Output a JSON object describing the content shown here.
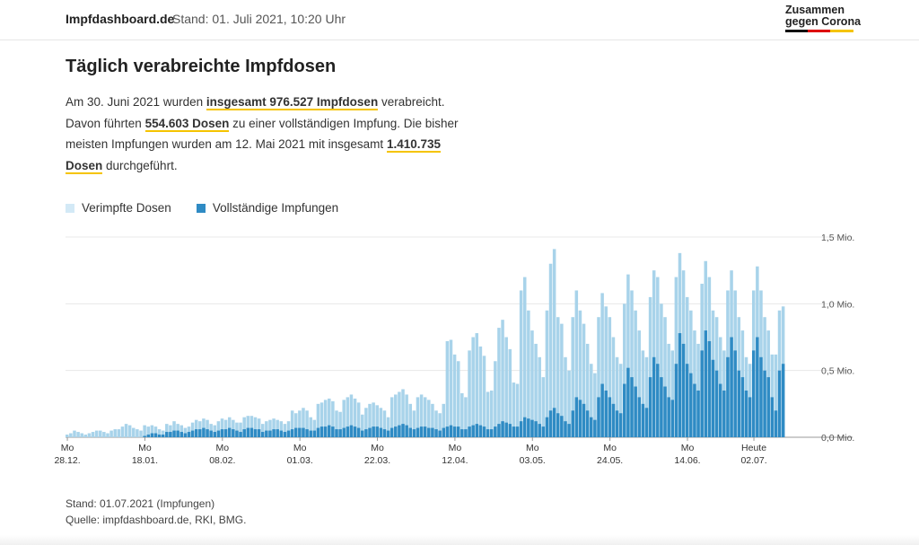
{
  "header": {
    "brand": "Impfdashboard.de",
    "stand": "Stand: 01. Juli 2021, 10:20 Uhr",
    "logo_line1": "Zusammen",
    "logo_line2": "gegen Corona"
  },
  "title": "Täglich verabreichte Impfdosen",
  "description": {
    "p1": "Am 30. Juni 2021 wurden ",
    "h1": "insgesamt 976.527 Impfdosen",
    "p2": " verabreicht.",
    "p3": "Davon führten ",
    "h2": "554.603 Dosen",
    "p4": " zu einer vollständigen Impfung. Die bisher meisten Impfungen wurden am 12. Mai 2021 mit insgesamt ",
    "h3": "1.410.735 Dosen",
    "p5": " durchgeführt."
  },
  "footer": {
    "stand": "Stand: 01.07.2021 (Impfungen)",
    "source": "Quelle: impfdashboard.de, RKI, BMG."
  },
  "chart_data": {
    "type": "bar",
    "stacked": "overlay",
    "title": "Täglich verabreichte Impfdosen",
    "ylim": [
      0,
      1.5
    ],
    "yunit": "Mio.",
    "yticks": [
      {
        "value": 0.0,
        "label": "0,0 Mio."
      },
      {
        "value": 0.5,
        "label": "0,5 Mio."
      },
      {
        "value": 1.0,
        "label": "1,0 Mio."
      },
      {
        "value": 1.5,
        "label": "1,5 Mio."
      }
    ],
    "x_ticks": [
      {
        "index": 0,
        "label1": "Mo",
        "label2": "28.12."
      },
      {
        "index": 21,
        "label1": "Mo",
        "label2": "18.01."
      },
      {
        "index": 42,
        "label1": "Mo",
        "label2": "08.02."
      },
      {
        "index": 63,
        "label1": "Mo",
        "label2": "01.03."
      },
      {
        "index": 84,
        "label1": "Mo",
        "label2": "22.03."
      },
      {
        "index": 105,
        "label1": "Mo",
        "label2": "12.04."
      },
      {
        "index": 126,
        "label1": "Mo",
        "label2": "03.05."
      },
      {
        "index": 147,
        "label1": "Mo",
        "label2": "24.05."
      },
      {
        "index": 168,
        "label1": "Mo",
        "label2": "14.06."
      },
      {
        "index": 186,
        "label1": "Heute",
        "label2": "02.07."
      }
    ],
    "series": [
      {
        "name": "Verimpfte Dosen",
        "color": "#a8d3ea",
        "values": [
          0.02,
          0.03,
          0.05,
          0.04,
          0.03,
          0.02,
          0.03,
          0.04,
          0.05,
          0.05,
          0.04,
          0.03,
          0.05,
          0.06,
          0.06,
          0.08,
          0.1,
          0.09,
          0.07,
          0.06,
          0.05,
          0.09,
          0.08,
          0.09,
          0.08,
          0.06,
          0.05,
          0.1,
          0.09,
          0.12,
          0.1,
          0.09,
          0.07,
          0.08,
          0.11,
          0.13,
          0.12,
          0.14,
          0.13,
          0.1,
          0.09,
          0.12,
          0.14,
          0.13,
          0.15,
          0.13,
          0.11,
          0.11,
          0.15,
          0.16,
          0.16,
          0.15,
          0.14,
          0.1,
          0.12,
          0.13,
          0.14,
          0.13,
          0.12,
          0.1,
          0.12,
          0.2,
          0.18,
          0.2,
          0.22,
          0.2,
          0.15,
          0.13,
          0.25,
          0.26,
          0.28,
          0.29,
          0.27,
          0.2,
          0.19,
          0.28,
          0.3,
          0.32,
          0.29,
          0.26,
          0.17,
          0.22,
          0.25,
          0.26,
          0.24,
          0.22,
          0.2,
          0.15,
          0.3,
          0.32,
          0.34,
          0.36,
          0.32,
          0.25,
          0.2,
          0.3,
          0.32,
          0.3,
          0.28,
          0.25,
          0.2,
          0.18,
          0.25,
          0.72,
          0.73,
          0.62,
          0.57,
          0.33,
          0.3,
          0.65,
          0.75,
          0.78,
          0.68,
          0.61,
          0.34,
          0.35,
          0.57,
          0.82,
          0.88,
          0.75,
          0.66,
          0.41,
          0.4,
          1.1,
          1.2,
          0.95,
          0.8,
          0.7,
          0.6,
          0.45,
          0.95,
          1.3,
          1.41,
          0.9,
          0.85,
          0.6,
          0.5,
          0.9,
          1.1,
          0.95,
          0.85,
          0.7,
          0.55,
          0.48,
          0.9,
          1.08,
          0.98,
          0.9,
          0.75,
          0.6,
          0.55,
          1.0,
          1.22,
          1.1,
          0.95,
          0.8,
          0.65,
          0.6,
          1.05,
          1.25,
          1.2,
          1.0,
          0.9,
          0.7,
          0.65,
          1.2,
          1.38,
          1.25,
          1.05,
          0.95,
          0.8,
          0.7,
          1.15,
          1.32,
          1.2,
          0.95,
          0.9,
          0.75,
          0.65,
          1.1,
          1.25,
          1.1,
          0.9,
          0.8,
          0.6,
          0.55,
          1.1,
          1.28,
          1.1,
          0.9,
          0.8,
          0.62,
          0.62,
          0.95,
          0.98
        ]
      },
      {
        "name": "Vollständige Impfungen",
        "color": "#2f8bc4",
        "values": [
          0,
          0,
          0,
          0,
          0,
          0,
          0,
          0,
          0,
          0,
          0,
          0,
          0,
          0,
          0,
          0,
          0,
          0,
          0,
          0,
          0,
          0.01,
          0.02,
          0.03,
          0.03,
          0.02,
          0.02,
          0.04,
          0.04,
          0.05,
          0.05,
          0.04,
          0.03,
          0.04,
          0.05,
          0.06,
          0.06,
          0.07,
          0.06,
          0.05,
          0.04,
          0.05,
          0.06,
          0.06,
          0.07,
          0.06,
          0.05,
          0.04,
          0.06,
          0.07,
          0.07,
          0.06,
          0.06,
          0.04,
          0.05,
          0.05,
          0.06,
          0.06,
          0.05,
          0.04,
          0.05,
          0.06,
          0.07,
          0.07,
          0.07,
          0.06,
          0.05,
          0.05,
          0.07,
          0.08,
          0.08,
          0.09,
          0.08,
          0.06,
          0.06,
          0.07,
          0.08,
          0.09,
          0.08,
          0.07,
          0.05,
          0.06,
          0.07,
          0.08,
          0.08,
          0.07,
          0.06,
          0.05,
          0.07,
          0.08,
          0.09,
          0.1,
          0.09,
          0.07,
          0.06,
          0.07,
          0.08,
          0.08,
          0.07,
          0.07,
          0.06,
          0.05,
          0.07,
          0.08,
          0.09,
          0.08,
          0.08,
          0.06,
          0.06,
          0.08,
          0.09,
          0.1,
          0.09,
          0.08,
          0.06,
          0.06,
          0.08,
          0.1,
          0.12,
          0.11,
          0.1,
          0.08,
          0.08,
          0.12,
          0.15,
          0.14,
          0.13,
          0.12,
          0.1,
          0.08,
          0.15,
          0.2,
          0.22,
          0.18,
          0.16,
          0.12,
          0.1,
          0.2,
          0.3,
          0.28,
          0.25,
          0.2,
          0.15,
          0.13,
          0.3,
          0.4,
          0.35,
          0.3,
          0.25,
          0.2,
          0.18,
          0.4,
          0.52,
          0.45,
          0.38,
          0.3,
          0.25,
          0.22,
          0.45,
          0.6,
          0.55,
          0.45,
          0.38,
          0.3,
          0.28,
          0.55,
          0.78,
          0.7,
          0.55,
          0.48,
          0.4,
          0.35,
          0.65,
          0.8,
          0.72,
          0.58,
          0.5,
          0.4,
          0.35,
          0.6,
          0.75,
          0.65,
          0.5,
          0.45,
          0.35,
          0.3,
          0.65,
          0.75,
          0.6,
          0.5,
          0.45,
          0.3,
          0.2,
          0.5,
          0.55
        ]
      }
    ]
  }
}
